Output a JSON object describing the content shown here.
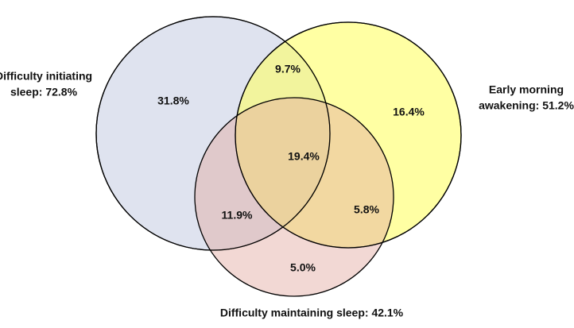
{
  "sets": [
    {
      "label_lines": [
        "Difficulty initiating",
        "sleep: 72.8%"
      ]
    },
    {
      "label_lines": [
        "Early morning",
        "awakening: 51.2%"
      ]
    },
    {
      "label_lines": [
        "Difficulty maintaining sleep: 42.1%"
      ]
    }
  ],
  "regions": {
    "initiating_only": "31.8%",
    "initiating_early": "9.7%",
    "early_only": "16.4%",
    "all_three": "19.4%",
    "initiating_maintaining": "11.9%",
    "early_maintaining": "5.8%",
    "maintaining_only": "5.0%"
  }
}
